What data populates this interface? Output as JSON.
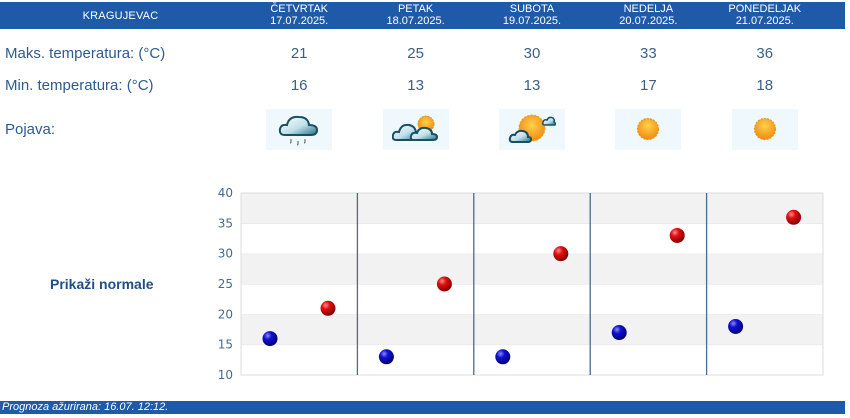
{
  "header": {
    "city": "KRAGUJEVAC",
    "days": [
      {
        "name": "ČETVRTAK",
        "date": "17.07.2025."
      },
      {
        "name": "PETAK",
        "date": "18.07.2025."
      },
      {
        "name": "SUBOTA",
        "date": "19.07.2025."
      },
      {
        "name": "NEDELJA",
        "date": "20.07.2025."
      },
      {
        "name": "PONEDELJAK",
        "date": "21.07.2025."
      }
    ]
  },
  "rows": {
    "max_label": "Maks. temperatura: (°C)",
    "min_label": "Min. temperatura: (°C)",
    "phenomenon_label": "Pojava:",
    "max_values": [
      "21",
      "25",
      "30",
      "33",
      "36"
    ],
    "min_values": [
      "16",
      "13",
      "13",
      "17",
      "18"
    ],
    "icons": [
      "rain-cloud-icon",
      "partly-cloudy-icon",
      "mostly-sunny-icon",
      "sun-icon",
      "sun-icon"
    ]
  },
  "normals_link": "Prikaži normale",
  "footer": {
    "updated": "Prognoza ažurirana:  16.07. 12:12."
  },
  "colors": {
    "header_bg": "#1f5aa8",
    "label_text": "#2e5b8f",
    "max_dot": "#cc0000",
    "min_dot": "#0a0ab0",
    "divider": "#4a6a8f"
  },
  "chart_data": {
    "type": "scatter",
    "title": "",
    "xlabel": "",
    "ylabel": "",
    "categories": [
      "ČETVRTAK 17.07.2025.",
      "PETAK 18.07.2025.",
      "SUBOTA 19.07.2025.",
      "NEDELJA 20.07.2025.",
      "PONEDELJAK 21.07.2025."
    ],
    "series": [
      {
        "name": "Min. temperatura",
        "color": "#0a0ab0",
        "values": [
          16,
          13,
          13,
          17,
          18
        ]
      },
      {
        "name": "Maks. temperatura",
        "color": "#cc0000",
        "values": [
          21,
          25,
          30,
          33,
          36
        ]
      }
    ],
    "ylim": [
      10,
      40
    ],
    "yticks": [
      10,
      15,
      20,
      25,
      30,
      35,
      40
    ],
    "grid": true,
    "legend": "none"
  }
}
